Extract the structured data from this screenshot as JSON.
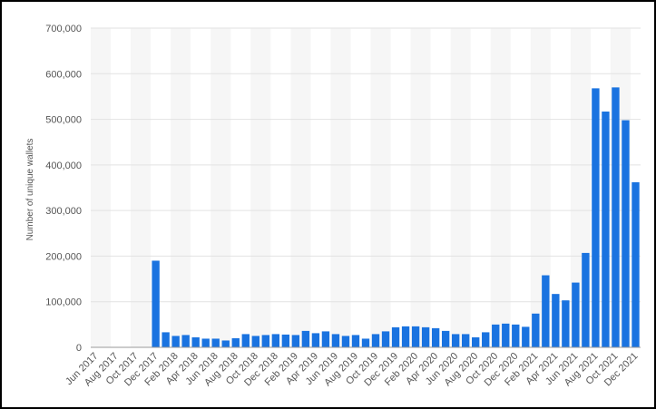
{
  "chart_data": {
    "type": "bar",
    "y_label": "Number of unique wallets",
    "color": "#1a73e0",
    "categories": [
      "Jun 2017",
      null,
      "Aug 2017",
      null,
      "Oct 2017",
      null,
      "Dec 2017",
      null,
      "Feb 2018",
      null,
      "Apr 2018",
      null,
      "Jun 2018",
      null,
      "Aug 2018",
      null,
      "Oct 2018",
      null,
      "Dec 2018",
      null,
      "Feb 2019",
      null,
      "Apr 2019",
      null,
      "Jun 2019",
      null,
      "Aug 2019",
      null,
      "Oct 2019",
      null,
      "Dec 2019",
      null,
      "Feb 2020",
      null,
      "Apr 2020",
      null,
      "Jun 2020",
      null,
      "Aug 2020",
      null,
      "Oct 2020",
      null,
      "Dec 2020",
      null,
      "Feb 2021",
      null,
      "Apr 2021",
      null,
      "Jun 2021",
      null,
      "Aug 2021",
      null,
      "Oct 2021",
      null,
      "Dec 2021"
    ],
    "values": [
      0,
      0,
      0,
      0,
      0,
      0,
      190000,
      33000,
      25000,
      27000,
      22000,
      19000,
      19000,
      15000,
      20000,
      29000,
      25000,
      27000,
      29000,
      28000,
      27000,
      36000,
      31000,
      35000,
      29000,
      25000,
      27000,
      19000,
      29000,
      35000,
      44000,
      46000,
      46000,
      44000,
      42000,
      36000,
      29000,
      29000,
      22000,
      33000,
      50000,
      52000,
      50000,
      45000,
      74000,
      158000,
      117000,
      103000,
      142000,
      207000,
      568000,
      517000,
      570000,
      498000,
      362000
    ],
    "ylim": [
      0,
      700000
    ],
    "yticks": [
      0,
      {
        "value": 100000,
        "label": "100,000"
      },
      {
        "value": 200000,
        "label": "200,000"
      },
      {
        "value": 300000,
        "label": "300,000"
      },
      {
        "value": 400000,
        "label": "400,000"
      },
      {
        "value": 500000,
        "label": "500,000"
      },
      {
        "value": 600000,
        "label": "600,000"
      },
      {
        "value": 700000,
        "label": "700,000"
      }
    ],
    "grid": true
  }
}
